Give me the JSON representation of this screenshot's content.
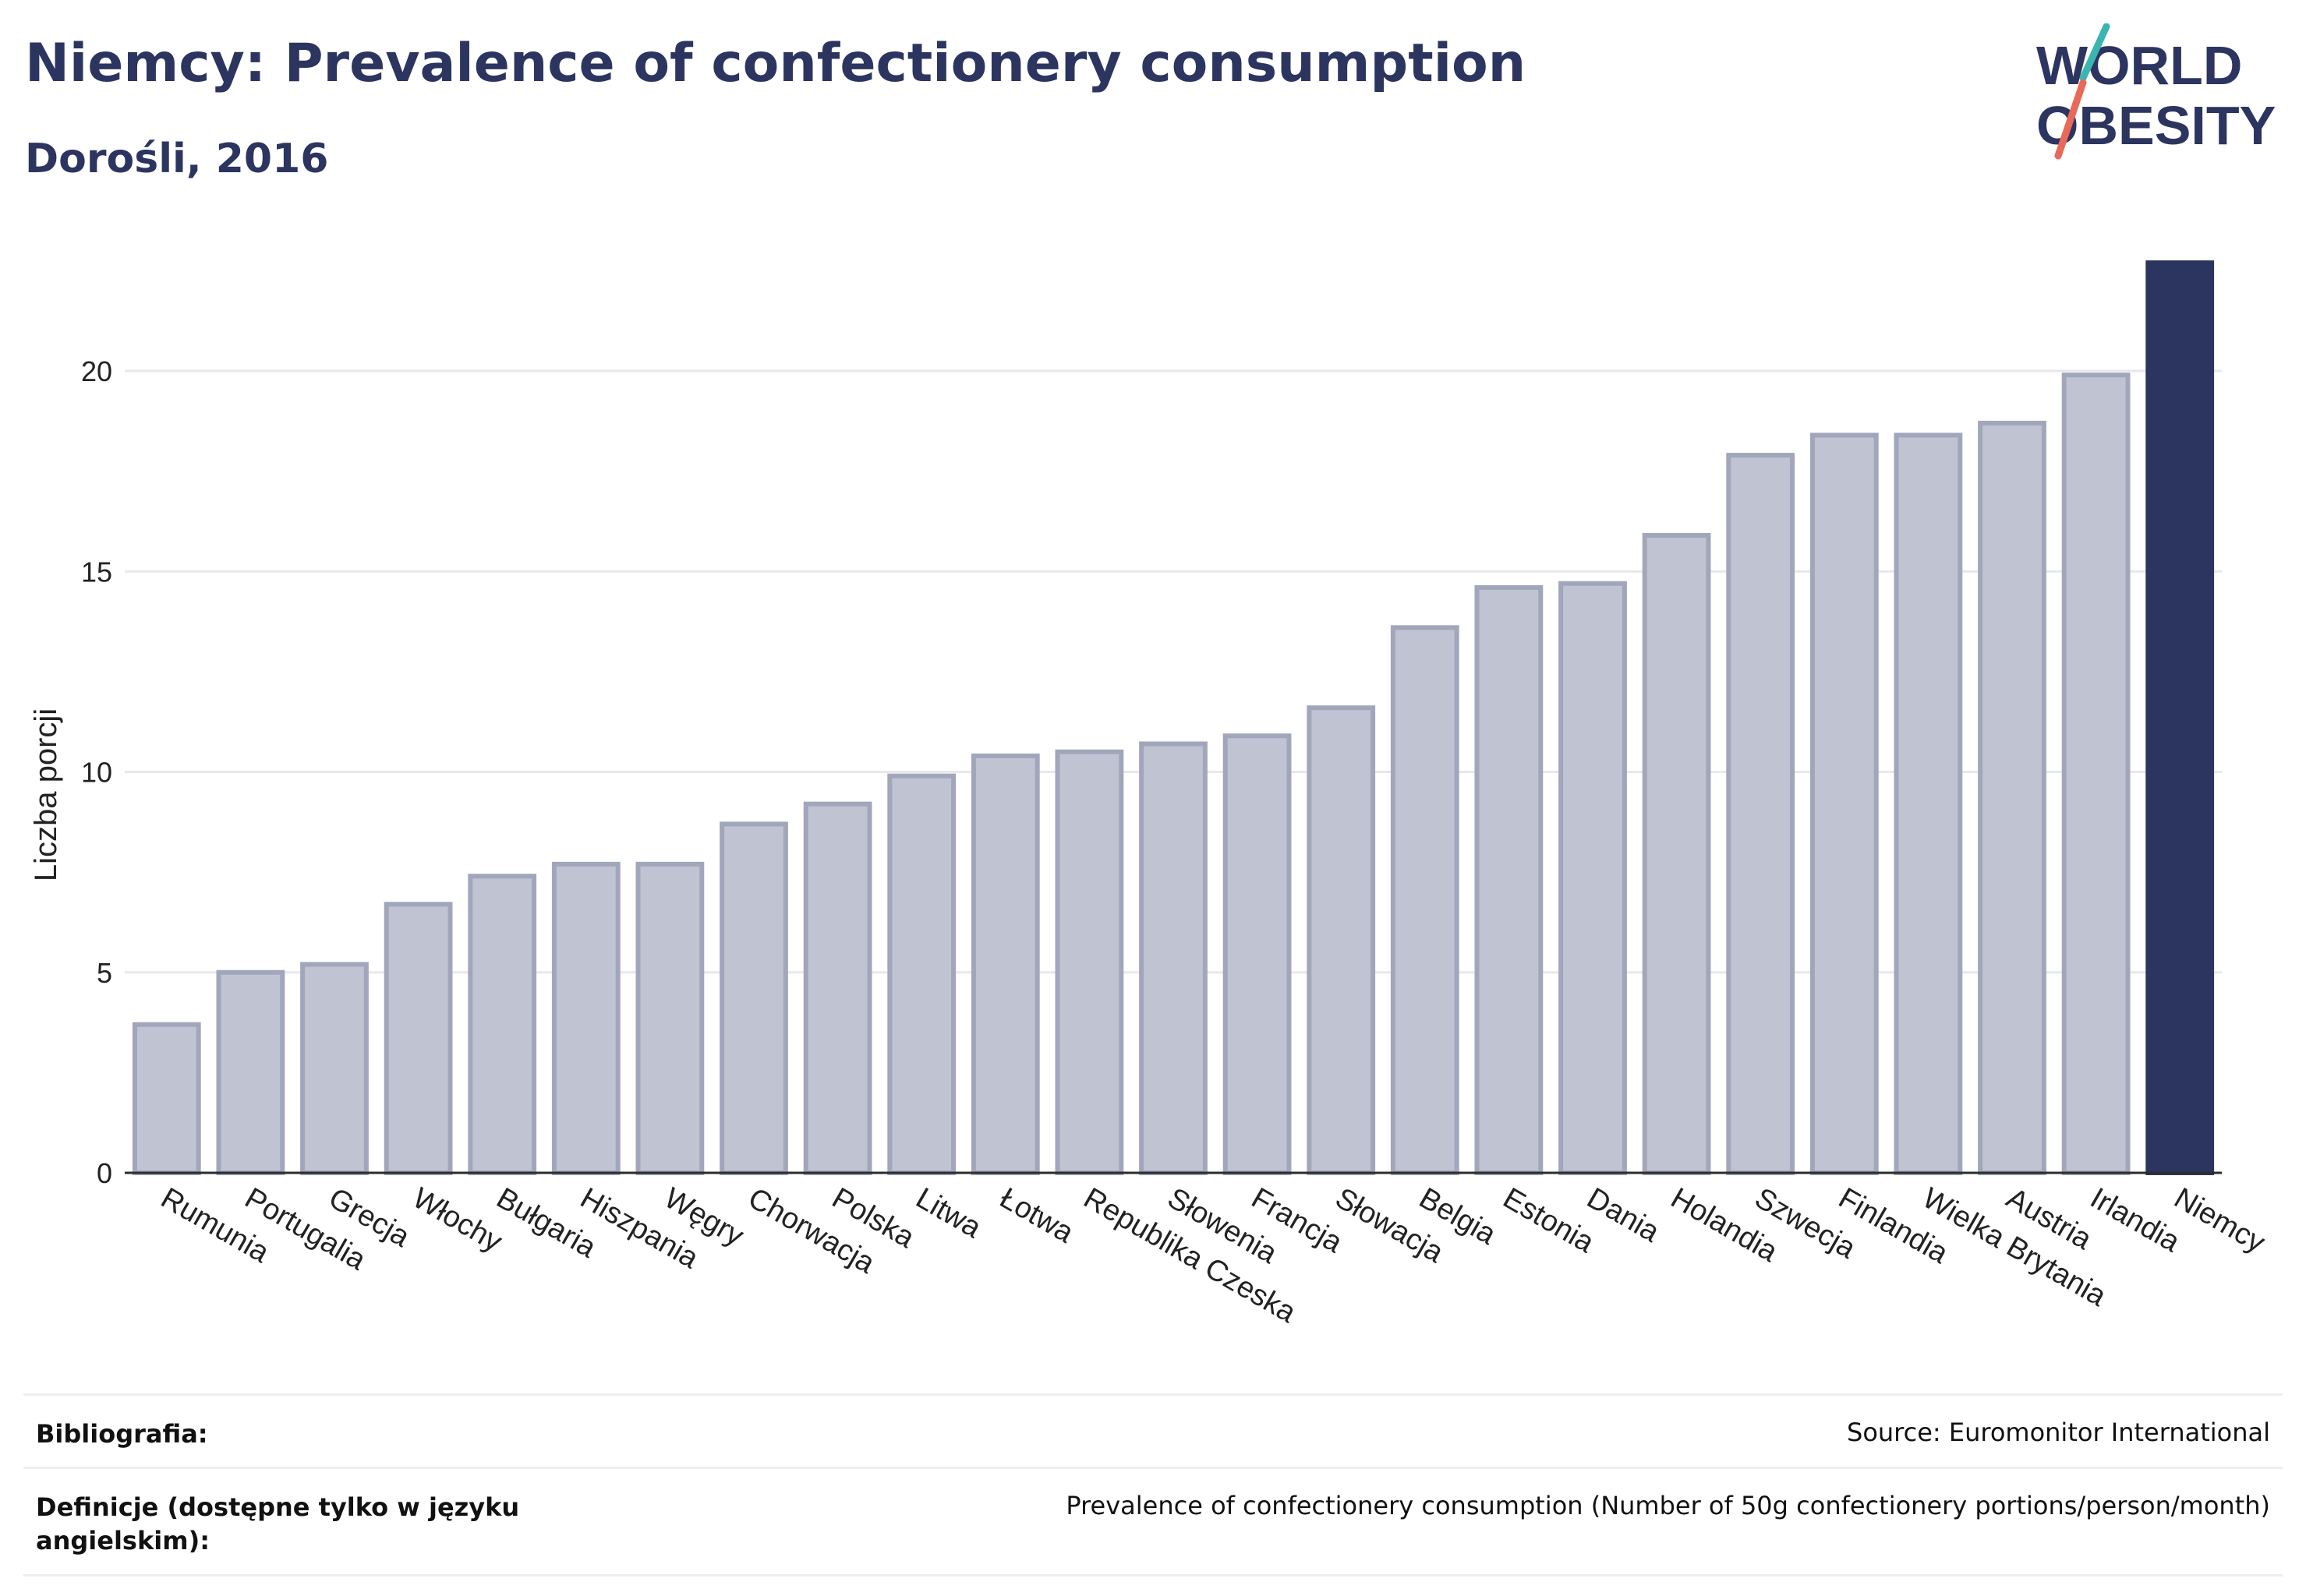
{
  "header": {
    "title": "Niemcy: Prevalence of confectionery consumption",
    "subtitle": "Dorośli, 2016"
  },
  "logo": {
    "line1": "WORLD",
    "line2": "OBESITY",
    "slash_teal": "#3ab5b0",
    "slash_coral": "#e8685a"
  },
  "colors": {
    "bar_fill": "#c0c3d1",
    "bar_stroke": "#a1a6bb",
    "highlight": "#2c3560",
    "grid": "#e8e8ec"
  },
  "chart_data": {
    "type": "bar",
    "ylabel": "Liczba porcji",
    "ylim": [
      0,
      22.8
    ],
    "yticks": [
      0,
      5,
      10,
      15,
      20
    ],
    "grid": "horizontal",
    "highlight": "Niemcy",
    "categories": [
      "Rumunia",
      "Portugalia",
      "Grecja",
      "Włochy",
      "Bułgaria",
      "Hiszpania",
      "Węgry",
      "Chorwacja",
      "Polska",
      "Litwa",
      "Łotwa",
      "Republika Czeska",
      "Słowenia",
      "Francja",
      "Słowacja",
      "Belgia",
      "Estonia",
      "Dania",
      "Holandia",
      "Szwecja",
      "Finlandia",
      "Wielka Brytania",
      "Austria",
      "Irlandia",
      "Niemcy"
    ],
    "values": [
      3.7,
      5.0,
      5.2,
      6.7,
      7.4,
      7.7,
      7.7,
      8.7,
      9.2,
      9.9,
      10.4,
      10.5,
      10.7,
      10.9,
      11.6,
      13.6,
      14.6,
      14.7,
      15.9,
      17.9,
      18.4,
      18.4,
      18.7,
      19.9,
      22.7
    ]
  },
  "footer": {
    "rows": [
      {
        "label": "Bibliografia:",
        "value": "Source: Euromonitor International"
      },
      {
        "label": "Definicje (dostępne tylko w języku angielskim):",
        "value": "Prevalence of confectionery consumption (Number of 50g confectionery portions/person/month)"
      }
    ]
  }
}
